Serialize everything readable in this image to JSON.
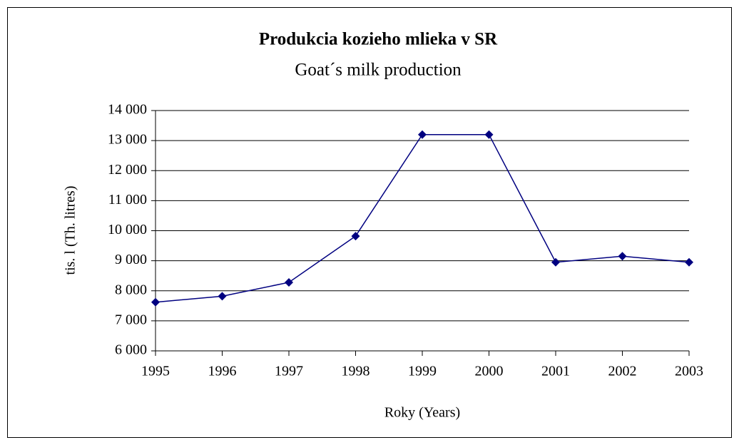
{
  "chart_data": {
    "type": "line",
    "title": "Produkcia kozieho mlieka v SR",
    "subtitle": "Goat´s milk production",
    "x_label": "Roky (Years)",
    "y_label": "tis. l (Th. litres)",
    "categories": [
      "1995",
      "1996",
      "1997",
      "1998",
      "1999",
      "2000",
      "2001",
      "2002",
      "2003"
    ],
    "series": [
      {
        "name": "Goat´s milk production",
        "color": "#000080",
        "values": [
          7620,
          7820,
          8280,
          9820,
          13200,
          13200,
          8950,
          9150,
          8950
        ]
      }
    ],
    "ylim": [
      6000,
      14000
    ],
    "yticks": [
      {
        "value": 6000,
        "label": "6 000"
      },
      {
        "value": 7000,
        "label": "7 000"
      },
      {
        "value": 8000,
        "label": "8 000"
      },
      {
        "value": 9000,
        "label": "9 000"
      },
      {
        "value": 10000,
        "label": "10 000"
      },
      {
        "value": 11000,
        "label": "11 000"
      },
      {
        "value": 12000,
        "label": "12 000"
      },
      {
        "value": 13000,
        "label": "13 000"
      },
      {
        "value": 14000,
        "label": "14 000"
      }
    ],
    "grid": true
  }
}
